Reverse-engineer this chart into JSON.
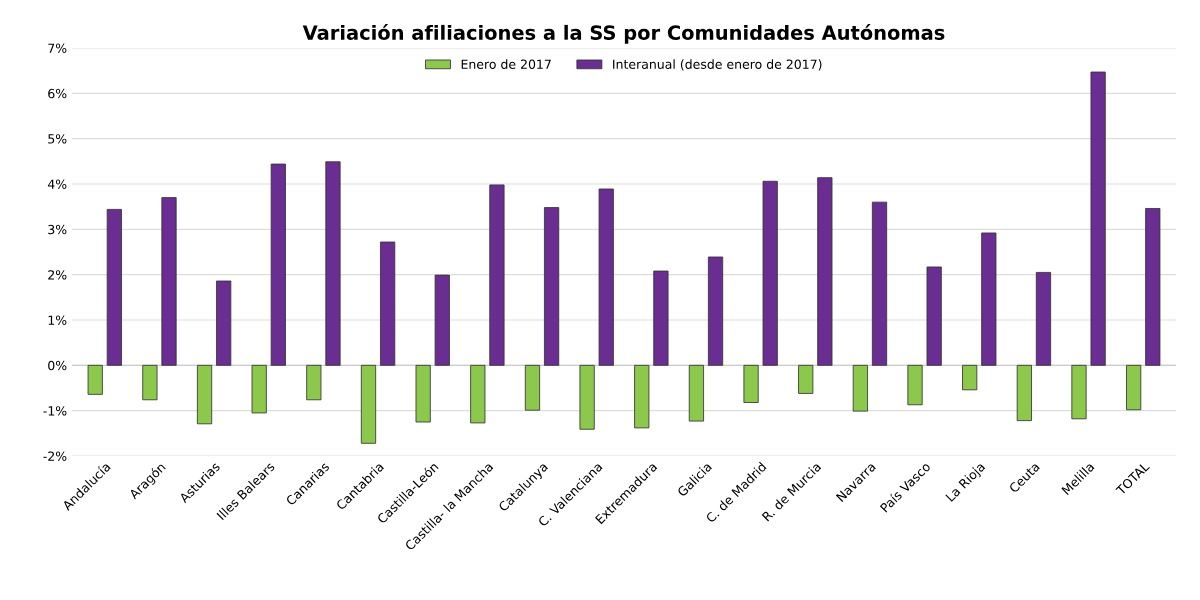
{
  "chart_data": {
    "type": "bar",
    "title": "Variación afiliaciones a la SS por Comunidades Autónomas",
    "categories": [
      "Andalucía",
      "Aragón",
      "Asturias",
      "Illes Balears",
      "Canarias",
      "Cantabria",
      "Castilla-León",
      "Castilla- la Mancha",
      "Catalunya",
      "C. Valenciana",
      "Extremadura",
      "Galicia",
      "C. de Madrid",
      "R. de Murcia",
      "Navarra",
      "País Vasco",
      "La Rioja",
      "Ceuta",
      "Melilla",
      "TOTAL"
    ],
    "series": [
      {
        "name": "Enero de 2017",
        "color": "#8cc84b",
        "values": [
          -0.64,
          -0.76,
          -1.29,
          -1.05,
          -0.76,
          -1.72,
          -1.25,
          -1.27,
          -0.99,
          -1.41,
          -1.38,
          -1.23,
          -0.82,
          -0.62,
          -1.01,
          -0.87,
          -0.54,
          -1.22,
          -1.18,
          -0.98
        ]
      },
      {
        "name": "Interanual (desde enero de 2017)",
        "color": "#6a2d91",
        "values": [
          3.44,
          3.7,
          1.86,
          4.44,
          4.49,
          2.72,
          1.99,
          3.98,
          3.48,
          3.89,
          2.08,
          2.39,
          4.06,
          4.14,
          3.6,
          2.17,
          2.92,
          2.05,
          6.47,
          3.46
        ]
      }
    ],
    "ylim": [
      -2,
      7
    ],
    "yticks": [
      {
        "value": -2,
        "label": "-2%"
      },
      {
        "value": -1,
        "label": "-1%"
      },
      {
        "value": 0,
        "label": "0%"
      },
      {
        "value": 1,
        "label": "1%"
      },
      {
        "value": 2,
        "label": "2%"
      },
      {
        "value": 3,
        "label": "3%"
      },
      {
        "value": 4,
        "label": "4%"
      },
      {
        "value": 5,
        "label": "5%"
      },
      {
        "value": 6,
        "label": "6%"
      },
      {
        "value": 7,
        "label": "7%"
      }
    ],
    "grid": "y",
    "legend": "top"
  }
}
